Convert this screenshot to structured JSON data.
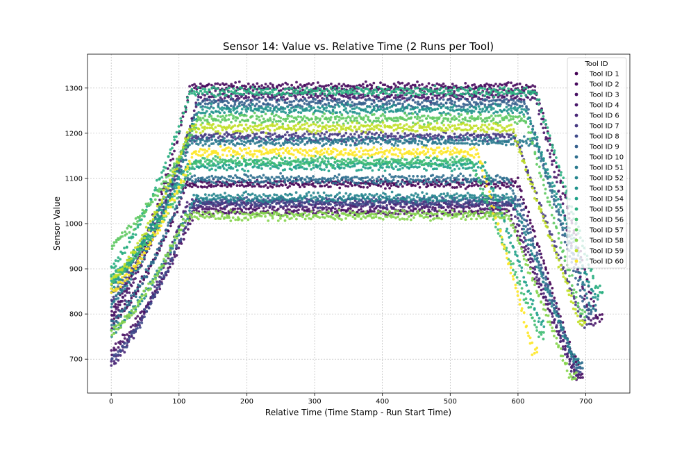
{
  "chart_data": {
    "type": "scatter",
    "title": "Sensor 14: Value vs. Relative Time (2 Runs per Tool)",
    "xlabel": "Relative Time (Time Stamp - Run Start Time)",
    "ylabel": "Sensor Value",
    "xlim": [
      -35,
      765
    ],
    "ylim": [
      625,
      1375
    ],
    "xticks": [
      0,
      100,
      200,
      300,
      400,
      500,
      600,
      700
    ],
    "yticks": [
      700,
      800,
      900,
      1000,
      1100,
      1200,
      1300
    ],
    "grid": true,
    "legend_title": "Tool ID",
    "legend_position": "top-right",
    "series": [
      {
        "name": "Tool ID 1",
        "color": "#440154",
        "plateau": 1090,
        "start": 780,
        "end": 700,
        "t_end": 690
      },
      {
        "name": "Tool ID 2",
        "color": "#46085c",
        "plateau": 1300,
        "start": 800,
        "end": 790,
        "t_end": 725
      },
      {
        "name": "Tool ID 3",
        "color": "#471063",
        "plateau": 1030,
        "start": 720,
        "end": 665,
        "t_end": 695
      },
      {
        "name": "Tool ID 4",
        "color": "#481769",
        "plateau": 1280,
        "start": 790,
        "end": 780,
        "t_end": 715
      },
      {
        "name": "Tool ID 6",
        "color": "#482576",
        "plateau": 1045,
        "start": 690,
        "end": 670,
        "t_end": 690
      },
      {
        "name": "Tool ID 7",
        "color": "#453781",
        "plateau": 1190,
        "start": 830,
        "end": 780,
        "t_end": 705
      },
      {
        "name": "Tool ID 8",
        "color": "#3e4989",
        "plateau": 1050,
        "start": 700,
        "end": 680,
        "t_end": 692
      },
      {
        "name": "Tool ID 9",
        "color": "#35608d",
        "plateau": 1265,
        "start": 850,
        "end": 800,
        "t_end": 710
      },
      {
        "name": "Tool ID 10",
        "color": "#2e6e8e",
        "plateau": 1100,
        "start": 780,
        "end": 690,
        "t_end": 695
      },
      {
        "name": "Tool ID 51",
        "color": "#29798e",
        "plateau": 1180,
        "start": 820,
        "end": 810,
        "t_end": 715
      },
      {
        "name": "Tool ID 52",
        "color": "#25858e",
        "plateau": 1060,
        "start": 760,
        "end": 700,
        "t_end": 690
      },
      {
        "name": "Tool ID 53",
        "color": "#20928c",
        "plateau": 1250,
        "start": 860,
        "end": 840,
        "t_end": 720
      },
      {
        "name": "Tool ID 54",
        "color": "#1fa188",
        "plateau": 1130,
        "start": 880,
        "end": 780,
        "t_end": 640
      },
      {
        "name": "Tool ID 55",
        "color": "#28ae80",
        "plateau": 1290,
        "start": 900,
        "end": 850,
        "t_end": 725
      },
      {
        "name": "Tool ID 56",
        "color": "#3fbc73",
        "plateau": 1140,
        "start": 880,
        "end": 760,
        "t_end": 640
      },
      {
        "name": "Tool ID 57",
        "color": "#5ec962",
        "plateau": 1230,
        "start": 950,
        "end": 800,
        "t_end": 700
      },
      {
        "name": "Tool ID 58",
        "color": "#84d44b",
        "plateau": 1020,
        "start": 760,
        "end": 665,
        "t_end": 685
      },
      {
        "name": "Tool ID 59",
        "color": "#c0df25",
        "plateau": 1210,
        "start": 870,
        "end": 780,
        "t_end": 700
      },
      {
        "name": "Tool ID 60",
        "color": "#fde725",
        "plateau": 1160,
        "start": 850,
        "end": 720,
        "t_end": 630
      }
    ]
  }
}
